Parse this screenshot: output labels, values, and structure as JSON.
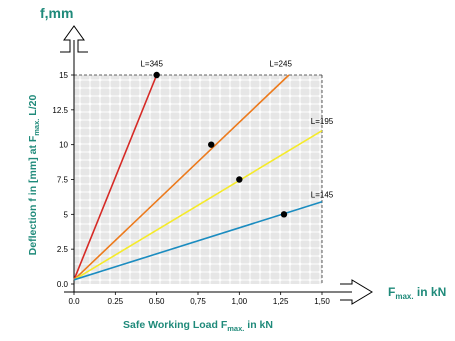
{
  "chart_data": {
    "type": "line",
    "y_axis_title": "f,mm",
    "x_axis_title_main": "F",
    "x_axis_title_sub": "max.",
    "x_axis_title_tail": " in kN",
    "ylabel_main": "Deflection f in [mm] at F",
    "ylabel_sub": "max.",
    "ylabel_tail": "  L/20",
    "xlabel_main": "Safe Working Load F",
    "xlabel_sub": "max.",
    "xlabel_tail": " in kN",
    "x_ticks": [
      "0.0",
      "0.25",
      "0.50",
      "0,75",
      "1,00",
      "1,25",
      "1,50"
    ],
    "x_tick_values": [
      0,
      0.25,
      0.5,
      0.75,
      1.0,
      1.25,
      1.5
    ],
    "y_ticks": [
      "0.0",
      "2.5",
      "5",
      "7.5",
      "10",
      "12.5",
      "15"
    ],
    "y_tick_values": [
      0,
      2.5,
      5,
      7.5,
      10,
      12.5,
      15
    ],
    "xlim": [
      0,
      1.5
    ],
    "ylim": [
      0,
      15
    ],
    "grid": true,
    "series": [
      {
        "name": "L=345",
        "color": "#d62a26",
        "x": [
          0,
          0.5
        ],
        "y": [
          0.3,
          15
        ],
        "point": {
          "x": 0.5,
          "y": 15
        },
        "label_x": 0.47,
        "label_y": 15.6
      },
      {
        "name": "L=245",
        "color": "#ec7a1c",
        "x": [
          0,
          1.3
        ],
        "y": [
          0.3,
          15
        ],
        "point": {
          "x": 0.83,
          "y": 10
        },
        "label_x": 1.25,
        "label_y": 15.6
      },
      {
        "name": "L=195",
        "color": "#f5ea2a",
        "x": [
          0,
          1.5
        ],
        "y": [
          0.3,
          11
        ],
        "point": {
          "x": 1.0,
          "y": 7.5
        },
        "label_x": 1.5,
        "label_y": 11.5
      },
      {
        "name": "L=145",
        "color": "#1b8cc0",
        "x": [
          0,
          1.5
        ],
        "y": [
          0.3,
          5.9
        ],
        "point": {
          "x": 1.27,
          "y": 5
        },
        "label_x": 1.5,
        "label_y": 6.2
      }
    ]
  }
}
